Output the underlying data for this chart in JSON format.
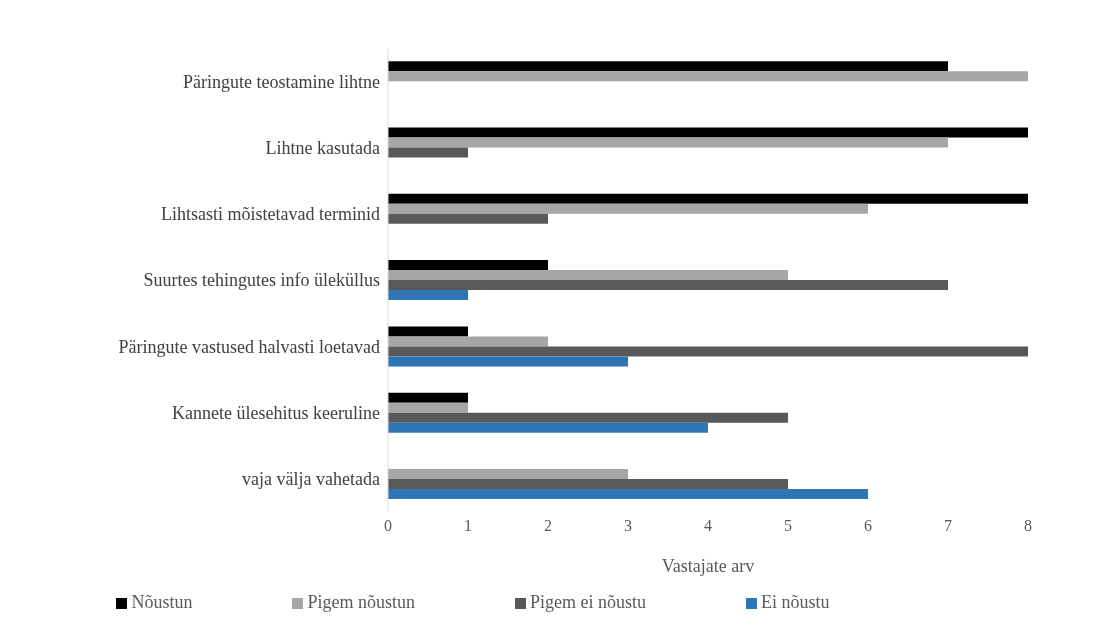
{
  "chart_data": {
    "type": "bar",
    "orientation": "horizontal",
    "xlabel": "Vastajate arv",
    "categories": [
      "Päringute teostamine lihtne",
      "Lihtne kasutada",
      "Lihtsasti mõistetavad terminid",
      "Suurtes tehingutes info üleküllus",
      "Päringute vastused halvasti loetavad",
      "Kannete ülesehitus keeruline",
      "vaja välja vahetada"
    ],
    "series": [
      {
        "name": "Nõustun",
        "color": "#000000",
        "values": [
          7,
          8,
          8,
          2,
          1,
          1,
          null
        ]
      },
      {
        "name": "Pigem nõustun",
        "color": "#a6a6a6",
        "values": [
          8,
          7,
          6,
          5,
          2,
          1,
          3
        ]
      },
      {
        "name": "Pigem ei nõustu",
        "color": "#595959",
        "values": [
          null,
          1,
          2,
          7,
          8,
          5,
          5
        ]
      },
      {
        "name": "Ei nõustu",
        "color": "#2e75b6",
        "values": [
          null,
          null,
          null,
          1,
          3,
          4,
          6
        ]
      }
    ],
    "xlim": [
      0,
      8
    ],
    "xticks": [
      0,
      1,
      2,
      3,
      4,
      5,
      6,
      7,
      8
    ],
    "legend": "bottom"
  }
}
